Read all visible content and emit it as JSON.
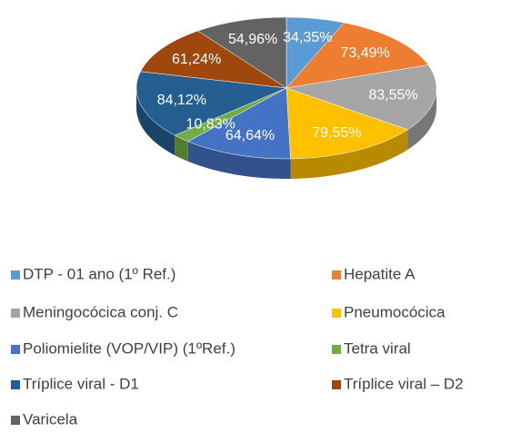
{
  "chart_data": {
    "type": "pie",
    "categories": [
      "DTP - 01 ano (1º Ref.)",
      "Hepatite A",
      "Meningocócica conj. C",
      "Pneumocócica",
      "Poliomielite (VOP/VIP) (1ºRef.)",
      "Tetra viral",
      "Tríplice viral - D1",
      "Tríplice viral – D2",
      "Varicela"
    ],
    "values": [
      34.35,
      73.49,
      83.55,
      79.55,
      64.64,
      10.83,
      84.12,
      61.24,
      54.96
    ],
    "value_labels": [
      "34,35%",
      "73,49%",
      "83,55%",
      "79,55%",
      "64,64%",
      "10,83%",
      "84,12%",
      "61,24%",
      "54,96%"
    ],
    "colors": [
      "#5b9bd5",
      "#ed7d31",
      "#a5a5a5",
      "#ffc000",
      "#4472c4",
      "#70ad47",
      "#255e91",
      "#9e480e",
      "#636363"
    ],
    "legend": "bottom"
  }
}
